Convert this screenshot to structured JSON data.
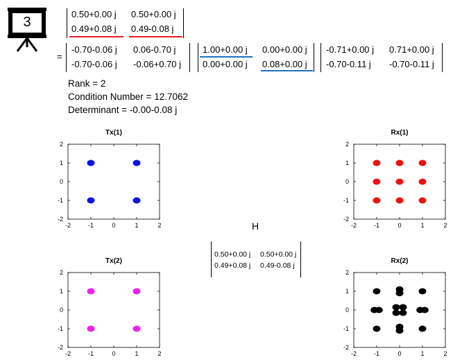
{
  "badge": {
    "number": "3",
    "icon": "presentation-board-icon"
  },
  "top_matrix": {
    "rows": [
      [
        "0.50+0.00 j",
        "0.50+0.00 j"
      ],
      [
        "0.49+0.08 j",
        "0.49-0.08 j"
      ]
    ],
    "underline_color": "#e02020"
  },
  "equals": "=",
  "U": {
    "rows": [
      [
        "-0.70-0.06 j",
        "0.06-0.70 j"
      ],
      [
        "-0.70-0.06 j",
        "-0.06+0.70 j"
      ]
    ]
  },
  "S": {
    "rows": [
      [
        "1.00+0.00 j",
        "0.00+0.00 j"
      ],
      [
        "0.00+0.00 j",
        "0.08+0.00 j"
      ]
    ],
    "underline_color": "#1f6fbf"
  },
  "V": {
    "rows": [
      [
        "-0.71+0.00 j",
        "0.71+0.00 j"
      ],
      [
        "-0.70-0.11 j",
        "-0.70-0.11 j"
      ]
    ]
  },
  "info": {
    "rank": "Rank = 2",
    "condition": "Condition Number = 12.7062",
    "determinant": "Determinant = -0.00-0.08 j"
  },
  "H": {
    "label": "H",
    "rows": [
      [
        "0.50+0.00 j",
        "0.50+0.00 j"
      ],
      [
        "0.49+0.08 j",
        "0.49-0.08 j"
      ]
    ]
  },
  "chart_data": [
    {
      "type": "scatter",
      "title": "Tx(1)",
      "xlim": [
        -2,
        2
      ],
      "ylim": [
        -2,
        2
      ],
      "xticks": [
        "-2",
        "-1",
        "0",
        "1",
        "2"
      ],
      "yticks": [
        "2",
        "1",
        "0",
        "-1",
        "-2"
      ],
      "color": "#0a14e6",
      "points": [
        [
          -1,
          1
        ],
        [
          1,
          1
        ],
        [
          -1,
          -1
        ],
        [
          1,
          -1
        ]
      ]
    },
    {
      "type": "scatter",
      "title": "Rx(1)",
      "xlim": [
        -2,
        2
      ],
      "ylim": [
        -2,
        2
      ],
      "xticks": [
        "-2",
        "-1",
        "0",
        "1",
        "2"
      ],
      "yticks": [
        "2",
        "1",
        "0",
        "-1",
        "-2"
      ],
      "color": "#ee1111",
      "points": [
        [
          -1,
          1
        ],
        [
          0,
          1
        ],
        [
          1,
          1
        ],
        [
          -1,
          0
        ],
        [
          0,
          0
        ],
        [
          1,
          0
        ],
        [
          -1,
          -1
        ],
        [
          0,
          -1
        ],
        [
          1,
          -1
        ]
      ]
    },
    {
      "type": "scatter",
      "title": "Tx(2)",
      "xlim": [
        -2,
        2
      ],
      "ylim": [
        -2,
        2
      ],
      "xticks": [
        "-2",
        "-1",
        "0",
        "1",
        "2"
      ],
      "yticks": [
        "2",
        "1",
        "0",
        "-1",
        "-2"
      ],
      "color": "#ee22ee",
      "points": [
        [
          -1,
          1
        ],
        [
          1,
          1
        ],
        [
          -1,
          -1
        ],
        [
          1,
          -1
        ]
      ]
    },
    {
      "type": "scatter",
      "title": "Rx(2)",
      "xlim": [
        -2,
        2
      ],
      "ylim": [
        -2,
        2
      ],
      "xticks": [
        "-2",
        "-1",
        "0",
        "1",
        "2"
      ],
      "yticks": [
        "2",
        "1",
        "0",
        "-1",
        "-2"
      ],
      "color": "#000000",
      "points": [
        [
          -1,
          1
        ],
        [
          1,
          1
        ],
        [
          0,
          1.1
        ],
        [
          0,
          0.9
        ],
        [
          -1.1,
          0
        ],
        [
          -0.9,
          0
        ],
        [
          1.1,
          0
        ],
        [
          0.9,
          0
        ],
        [
          -0.15,
          0.15
        ],
        [
          0.15,
          0.15
        ],
        [
          -0.15,
          -0.15
        ],
        [
          0.15,
          -0.15
        ],
        [
          -1,
          -1
        ],
        [
          1,
          -1
        ],
        [
          0,
          -0.9
        ],
        [
          0,
          -1.1
        ]
      ]
    }
  ]
}
